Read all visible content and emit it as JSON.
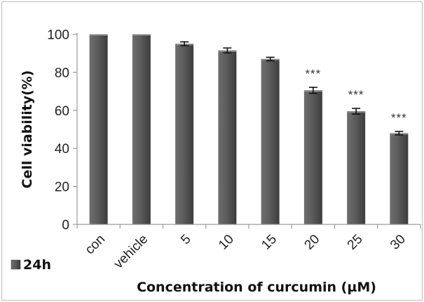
{
  "chart_data": {
    "type": "bar",
    "categories": [
      "con",
      "vehicle",
      "5",
      "10",
      "15",
      "20",
      "25",
      "30"
    ],
    "series": [
      {
        "name": "24h",
        "values": [
          100,
          100,
          95,
          91.5,
          87,
          70.5,
          59.5,
          48
        ],
        "errors": [
          0,
          0,
          1,
          1.3,
          0.9,
          1.6,
          1.5,
          0.9
        ]
      }
    ],
    "annotations": [
      "",
      "",
      "",
      "",
      "",
      "***",
      "***",
      "***"
    ],
    "xlabel": "Concentration of curcumin (µM)",
    "ylabel": "Cell viability(%)",
    "ylim": [
      0,
      100
    ],
    "yticks": [
      "0",
      "20",
      "40",
      "60",
      "80",
      "100"
    ],
    "grid": false,
    "legend_position": "bottom-left",
    "colors": {
      "bar": "#5a5a5a",
      "bar_light": "#7a7a7a",
      "bar_dark": "#3a3a3a",
      "axis": "#9a9a9a"
    }
  }
}
